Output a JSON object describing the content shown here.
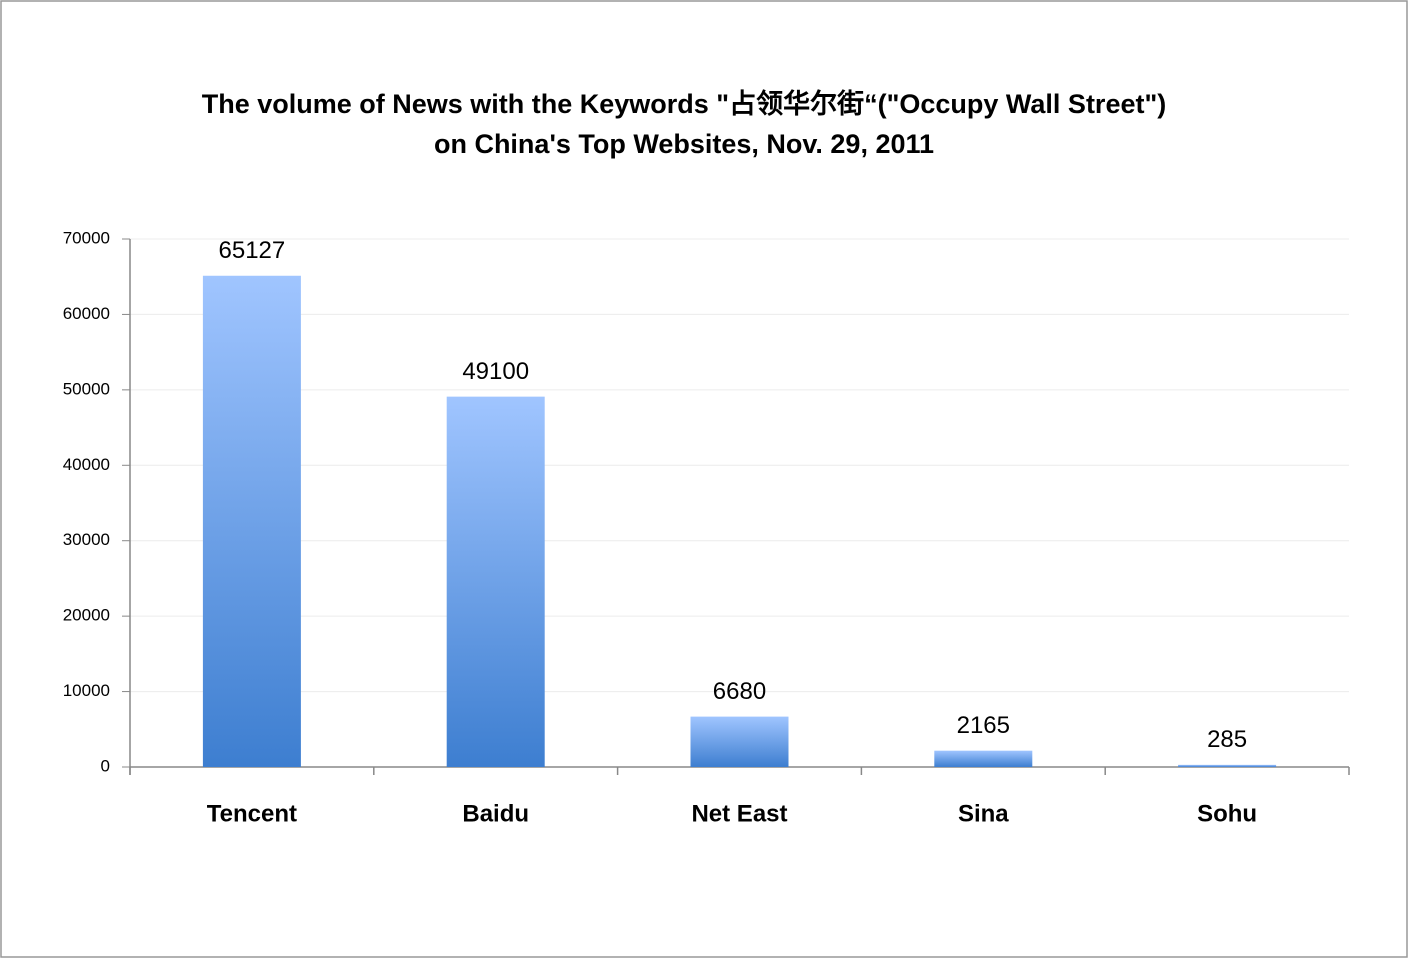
{
  "chart_data": {
    "type": "bar",
    "title": [
      "The volume of News with the Keywords \"占领华尔街“(\"Occupy Wall Street\")",
      "on China's Top Websites, Nov. 29, 2011"
    ],
    "categories": [
      "Tencent",
      "Baidu",
      "Net East",
      "Sina",
      "Sohu"
    ],
    "values": [
      65127,
      49100,
      6680,
      2165,
      285
    ],
    "gradient": [
      "#a0c5ff",
      "#3d7ed0"
    ],
    "ylim": [
      0,
      70000
    ],
    "yticks": [
      0,
      10000,
      20000,
      30000,
      40000,
      50000,
      60000,
      70000
    ],
    "grid": true
  }
}
